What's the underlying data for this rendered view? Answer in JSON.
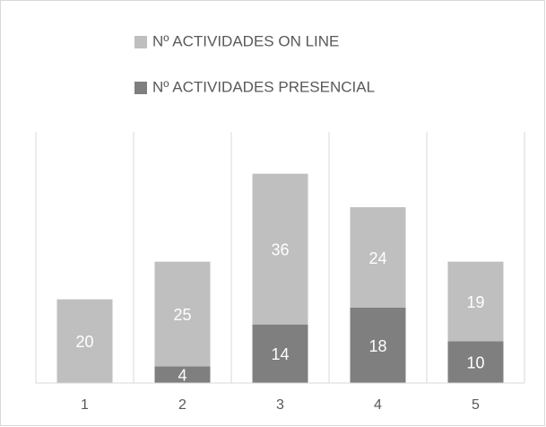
{
  "chart_data": {
    "type": "stacked_bar",
    "categories": [
      "1",
      "2",
      "3",
      "4",
      "5"
    ],
    "series": [
      {
        "name": "Nº ACTIVIDADES PRESENCIAL",
        "color": "#7f7f7f",
        "values": [
          0,
          4,
          14,
          18,
          10
        ]
      },
      {
        "name": "Nº ACTIVIDADES ON LINE",
        "color": "#bfbfbf",
        "values": [
          20,
          25,
          36,
          24,
          19
        ]
      }
    ],
    "ylim": [
      0,
      60
    ]
  }
}
